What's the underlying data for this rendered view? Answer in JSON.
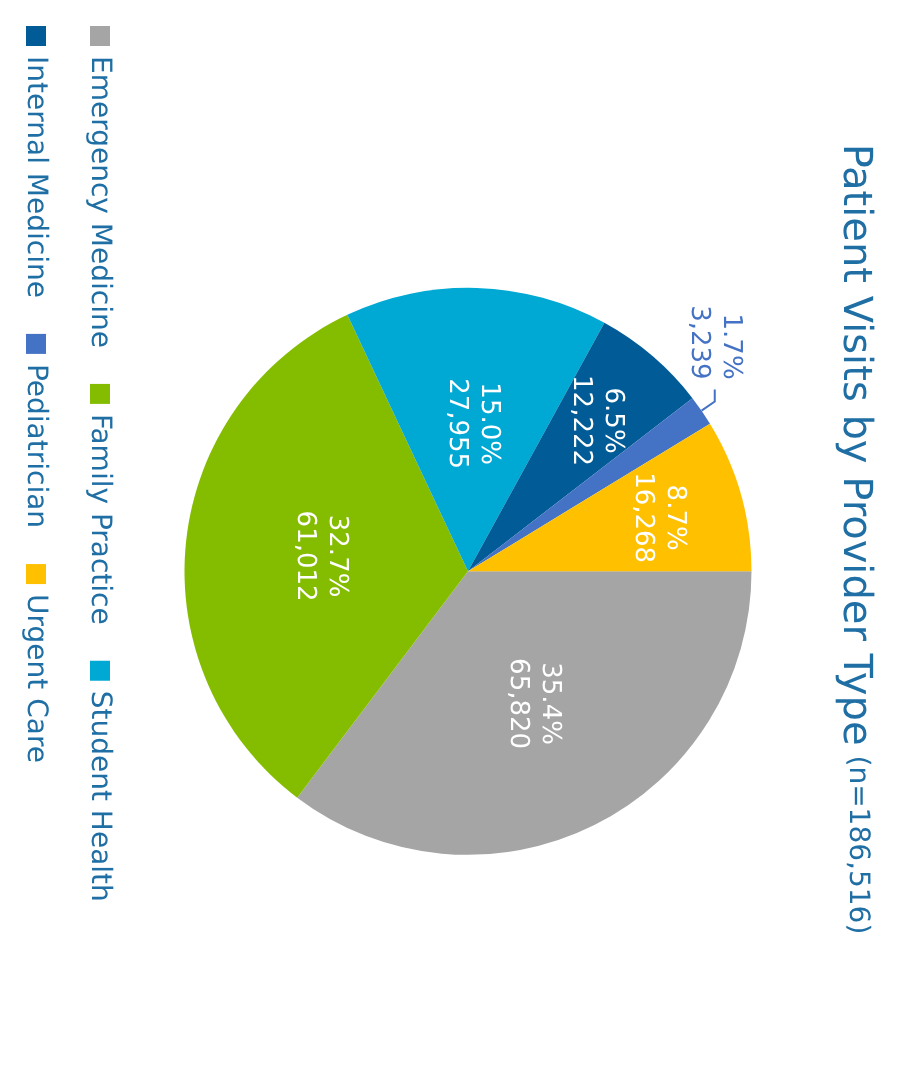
{
  "chart_data": {
    "type": "pie",
    "title": "Patient Visits by Provider Type",
    "subtitle": "(n=186,516)",
    "categories": [
      "Emergency Medicine",
      "Family Practice",
      "Student Health",
      "Internal Medicine",
      "Pediatrician",
      "Urgent Care"
    ],
    "values": [
      65820,
      61012,
      27955,
      12222,
      3239,
      16268
    ],
    "colors": [
      "#a5a5a5",
      "#84bd00",
      "#00a9d4",
      "#005b96",
      "#4472c4",
      "#ffc000"
    ],
    "value_labels": [
      "35.4%\n65,820",
      "32.7%\n61,012",
      "15.0%\n27,955",
      "6.5%\n12,222",
      "1.7%\n3,239",
      "8.7%\n16,268"
    ],
    "legend": "left"
  }
}
